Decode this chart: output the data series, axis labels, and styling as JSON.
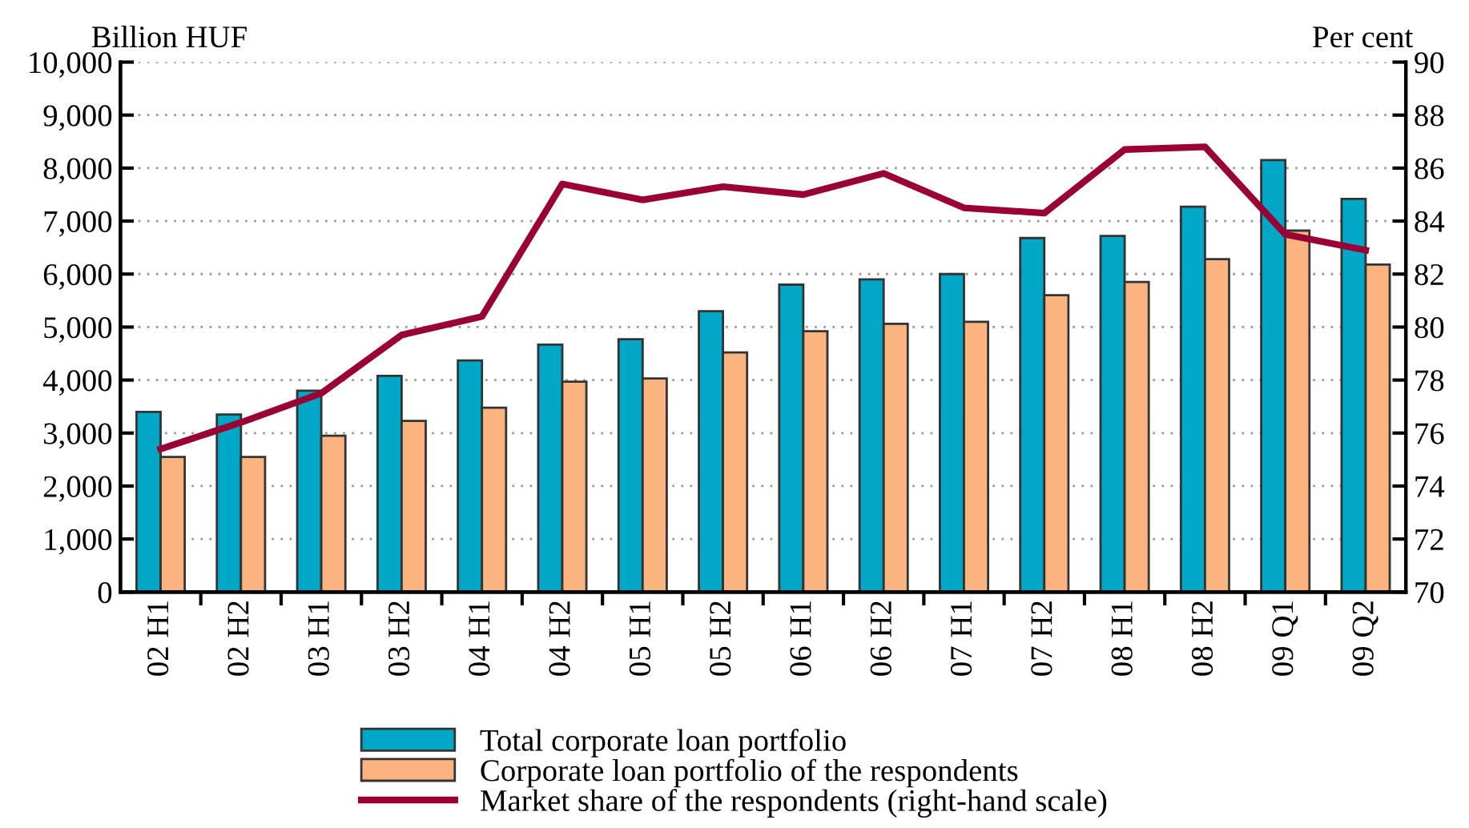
{
  "chart_data": {
    "type": "bar",
    "ylabel": "Billion HUF",
    "y2label": "Per cent",
    "categories": [
      "02 H1",
      "02 H2",
      "03 H1",
      "03 H2",
      "04 H1",
      "04 H2",
      "05 H1",
      "05 H2",
      "06 H1",
      "06 H2",
      "07 H1",
      "07 H2",
      "08 H1",
      "08 H2",
      "09 Q1",
      "09 Q2"
    ],
    "series": [
      {
        "name": "Total corporate loan portfolio",
        "color": "#00a7c7",
        "values": [
          3400,
          3350,
          3800,
          4080,
          4370,
          4670,
          4770,
          5300,
          5800,
          5900,
          6000,
          6680,
          6720,
          7270,
          8150,
          7420
        ]
      },
      {
        "name": "Corporate loan portfolio of the respondents",
        "color": "#fbb47f",
        "values": [
          2550,
          2550,
          2950,
          3230,
          3480,
          3970,
          4030,
          4520,
          4920,
          5060,
          5100,
          5600,
          5850,
          6280,
          6820,
          6180
        ]
      },
      {
        "name": "Market share of the respondents (right-hand scale)",
        "type": "line",
        "axis": "y2",
        "color": "#990033",
        "values": [
          75.4,
          76.4,
          77.5,
          79.7,
          80.4,
          85.4,
          84.8,
          85.3,
          85.0,
          85.8,
          84.5,
          84.3,
          86.7,
          86.8,
          83.5,
          82.9
        ]
      }
    ],
    "ylim": [
      0,
      10000
    ],
    "yticks": [
      {
        "value": 0,
        "label": "0"
      },
      {
        "value": 1000,
        "label": "1,000"
      },
      {
        "value": 2000,
        "label": "2,000"
      },
      {
        "value": 3000,
        "label": "3,000"
      },
      {
        "value": 4000,
        "label": "4,000"
      },
      {
        "value": 5000,
        "label": "5,000"
      },
      {
        "value": 6000,
        "label": "6,000"
      },
      {
        "value": 7000,
        "label": "7,000"
      },
      {
        "value": 8000,
        "label": "8,000"
      },
      {
        "value": 9000,
        "label": "9,000"
      },
      {
        "value": 10000,
        "label": "10,000"
      }
    ],
    "y2lim": [
      70,
      90
    ],
    "y2ticks": [
      70,
      72,
      74,
      76,
      78,
      80,
      82,
      84,
      86,
      88,
      90
    ],
    "grid": "y",
    "legend": "bottom"
  }
}
